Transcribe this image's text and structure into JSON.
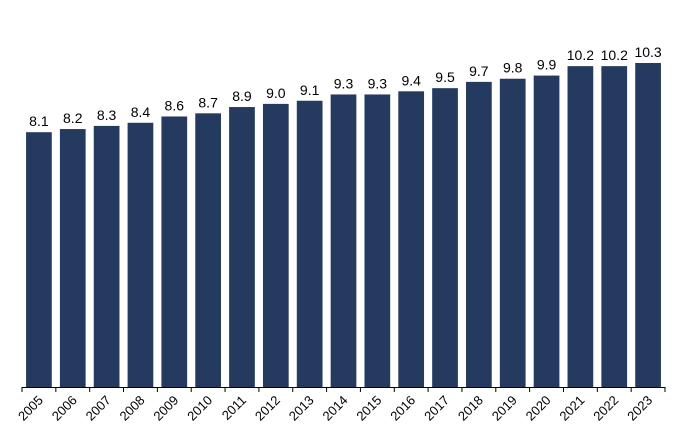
{
  "chart_data": {
    "type": "bar",
    "categories": [
      "2005",
      "2006",
      "2007",
      "2008",
      "2009",
      "2010",
      "2011",
      "2012",
      "2013",
      "2014",
      "2015",
      "2016",
      "2017",
      "2018",
      "2019",
      "2020",
      "2021",
      "2022",
      "2023"
    ],
    "values": [
      8.1,
      8.2,
      8.3,
      8.4,
      8.6,
      8.7,
      8.9,
      9.0,
      9.1,
      9.3,
      9.3,
      9.4,
      9.5,
      9.7,
      9.8,
      9.9,
      10.2,
      10.2,
      10.3
    ],
    "value_labels": [
      "8.1",
      "8.2",
      "8.3",
      "8.4",
      "8.6",
      "8.7",
      "8.9",
      "9.0",
      "9.1",
      "9.3",
      "9.3",
      "9.4",
      "9.5",
      "9.7",
      "9.8",
      "9.9",
      "10.2",
      "10.2",
      "10.3"
    ],
    "title": "",
    "xlabel": "",
    "ylabel": "",
    "ylim": [
      0,
      10.3
    ],
    "grid": false,
    "legend": "none",
    "bar_color": "#243a5e",
    "data_labels": true
  }
}
